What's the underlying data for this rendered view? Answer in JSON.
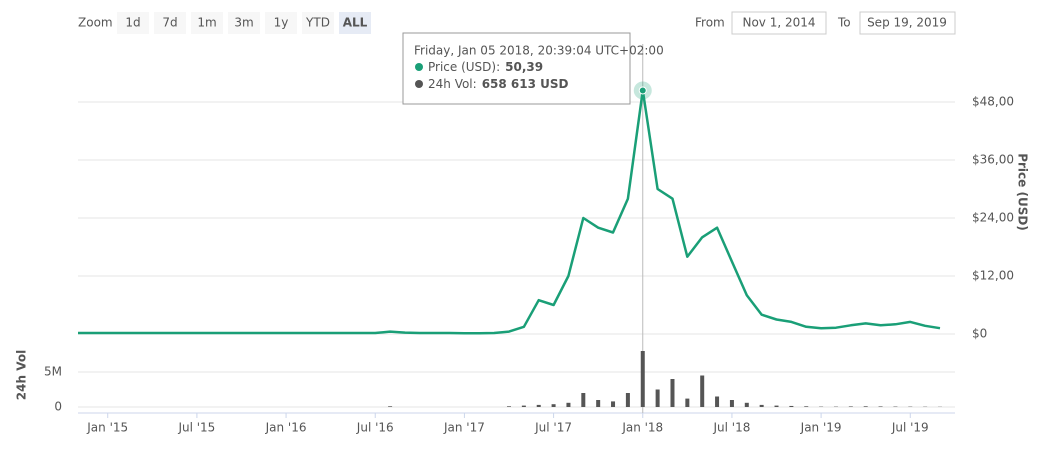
{
  "controls": {
    "zoom_label": "Zoom",
    "zoom_buttons": [
      "1d",
      "7d",
      "1m",
      "3m",
      "1y",
      "YTD",
      "ALL"
    ],
    "selected_index": 6,
    "from_label": "From",
    "from": "Nov 1, 2014",
    "to_label": "To",
    "to": "Sep 19, 2019"
  },
  "chart_data": {
    "type": "line",
    "ylabel": "Price (USD)",
    "y2label": "24h Vol",
    "x": [
      "2014-11",
      "2014-12",
      "2015-01",
      "2015-02",
      "2015-03",
      "2015-04",
      "2015-05",
      "2015-06",
      "2015-07",
      "2015-08",
      "2015-09",
      "2015-10",
      "2015-11",
      "2015-12",
      "2016-01",
      "2016-02",
      "2016-03",
      "2016-04",
      "2016-05",
      "2016-06",
      "2016-07",
      "2016-08",
      "2016-09",
      "2016-10",
      "2016-11",
      "2016-12",
      "2017-01",
      "2017-02",
      "2017-03",
      "2017-04",
      "2017-05",
      "2017-06",
      "2017-07",
      "2017-08",
      "2017-09",
      "2017-10",
      "2017-11",
      "2017-12",
      "2018-01",
      "2018-02",
      "2018-03",
      "2018-04",
      "2018-05",
      "2018-06",
      "2018-07",
      "2018-08",
      "2018-09",
      "2018-10",
      "2018-11",
      "2018-12",
      "2019-01",
      "2019-02",
      "2019-03",
      "2019-04",
      "2019-05",
      "2019-06",
      "2019-07",
      "2019-08",
      "2019-09"
    ],
    "xlim": [
      "2014-11",
      "2019-09"
    ],
    "xticks": [
      {
        "value": "2015-01",
        "label": "Jan '15"
      },
      {
        "value": "2015-07",
        "label": "Jul '15"
      },
      {
        "value": "2016-01",
        "label": "Jan '16"
      },
      {
        "value": "2016-07",
        "label": "Jul '16"
      },
      {
        "value": "2017-01",
        "label": "Jan '17"
      },
      {
        "value": "2017-07",
        "label": "Jul '17"
      },
      {
        "value": "2018-01",
        "label": "Jan '18"
      },
      {
        "value": "2018-07",
        "label": "Jul '18"
      },
      {
        "value": "2019-01",
        "label": "Jan '19"
      },
      {
        "value": "2019-07",
        "label": "Jul '19"
      }
    ],
    "ylim": [
      0,
      60
    ],
    "yticks": [
      {
        "value": 0,
        "label": "$0"
      },
      {
        "value": 12,
        "label": "$12,00"
      },
      {
        "value": 24,
        "label": "$24,00"
      },
      {
        "value": 36,
        "label": "$36,00"
      },
      {
        "value": 48,
        "label": "$48,00"
      }
    ],
    "y2lim": [
      0,
      9000000
    ],
    "y2ticks": [
      0,
      {
        "value": 5000000,
        "label": "5M"
      }
    ],
    "grid": true,
    "series": [
      {
        "type": "line",
        "color": "#1a9f77",
        "values": [
          0.2,
          0.2,
          0.2,
          0.2,
          0.2,
          0.2,
          0.2,
          0.2,
          0.2,
          0.2,
          0.2,
          0.2,
          0.2,
          0.2,
          0.2,
          0.2,
          0.2,
          0.2,
          0.2,
          0.2,
          0.2,
          0.5,
          0.3,
          0.2,
          0.2,
          0.2,
          0.15,
          0.15,
          0.2,
          0.5,
          1.5,
          7,
          6,
          12,
          24,
          22,
          21,
          28,
          50.39,
          30,
          28,
          16,
          20,
          22,
          15,
          8,
          4,
          3,
          2.5,
          1.5,
          1.2,
          1.3,
          1.8,
          2.2,
          1.8,
          2.0,
          2.5,
          1.7,
          1.2
        ]
      },
      {
        "type": "bar",
        "axis": "y2",
        "color": "#555555",
        "values": [
          0,
          0,
          0,
          0,
          0,
          0,
          0,
          0,
          0,
          0,
          0,
          0,
          0,
          0,
          0,
          0,
          0,
          0,
          0,
          0,
          0,
          100000,
          0,
          0,
          0,
          0,
          0,
          0,
          0,
          100000,
          200000,
          300000,
          400000,
          600000,
          2000000,
          1000000,
          800000,
          2000000,
          8000000,
          2500000,
          4000000,
          1200000,
          4500000,
          1500000,
          1000000,
          600000,
          300000,
          200000,
          150000,
          100000,
          50000,
          50000,
          80000,
          100000,
          80000,
          60000,
          50000,
          40000,
          30000
        ]
      }
    ],
    "tooltip": {
      "date": "Friday, Jan 05 2018, 20:39:04 UTC+02:00",
      "items": [
        {
          "name": "Price (USD):",
          "value": 50.39,
          "value_label": "50,39"
        },
        {
          "name": "24h Vol:",
          "value": 658613,
          "value_label": "658 613 USD"
        }
      ]
    }
  }
}
